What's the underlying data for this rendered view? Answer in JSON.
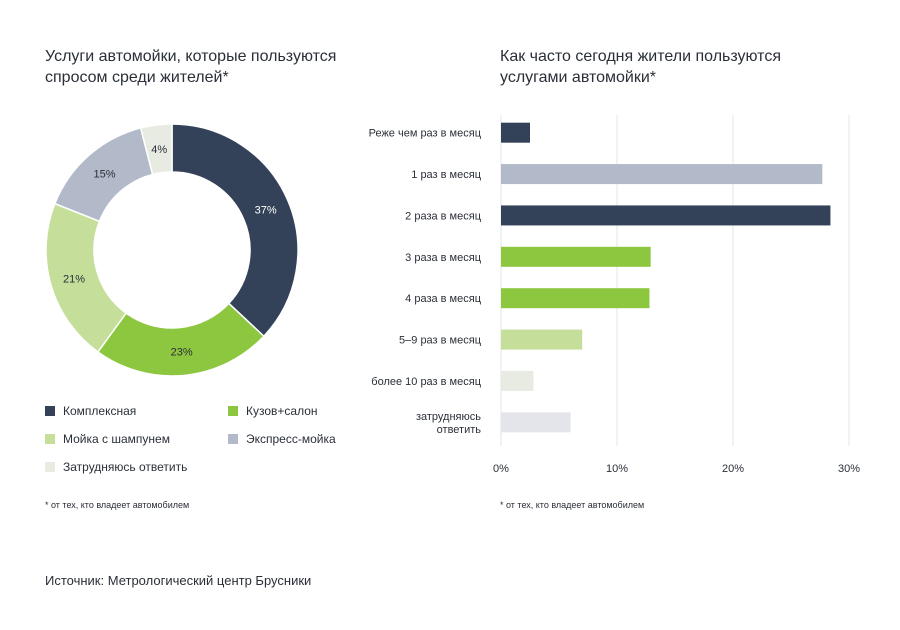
{
  "chart_data": [
    {
      "type": "pie",
      "title": "Услуги автомойки, которые пользуются\nспросом среди жителей*",
      "categories": [
        "Комплексная",
        "Кузов+салон",
        "Мойка с шампунем",
        "Экспресс-мойка",
        "Затрудняюсь ответить"
      ],
      "values": [
        37,
        23,
        21,
        15,
        4
      ],
      "value_labels": [
        "37%",
        "23%",
        "21%",
        "15%",
        "4%"
      ],
      "colors": [
        "#344259",
        "#8dc63f",
        "#c5df9b",
        "#b2b9c9",
        "#e8ebe2"
      ],
      "legend_placement": "bottom",
      "footnote": "* от тех, кто владеет автомобилем"
    },
    {
      "type": "bar",
      "orientation": "horizontal",
      "title": "Как часто сегодня жители пользуются\nуслугами автомойки*",
      "categories": [
        "Реже чем раз в месяц",
        "1 раз в месяц",
        "2 раза в месяц",
        "3 раза в месяц",
        "4 раза в месяц",
        "5–9 раз в месяц",
        "более 10 раз в месяц",
        "затрудняюсь\nответить"
      ],
      "values": [
        2.5,
        27.7,
        28.4,
        12.9,
        12.8,
        7.0,
        2.8,
        6.0
      ],
      "colors": [
        "#344259",
        "#b2b9c9",
        "#344259",
        "#8dc63f",
        "#8dc63f",
        "#c5df9b",
        "#e8ebe2",
        "#e3e5ea"
      ],
      "xlim": [
        0,
        30
      ],
      "x_ticks": [
        0,
        10,
        20,
        30
      ],
      "x_tick_labels": [
        "0%",
        "10%",
        "20%",
        "30%"
      ],
      "grid": true,
      "footnote": "* от тех, кто владеет автомобилем"
    }
  ],
  "source": "Источник: Метрологический центр Брусники"
}
